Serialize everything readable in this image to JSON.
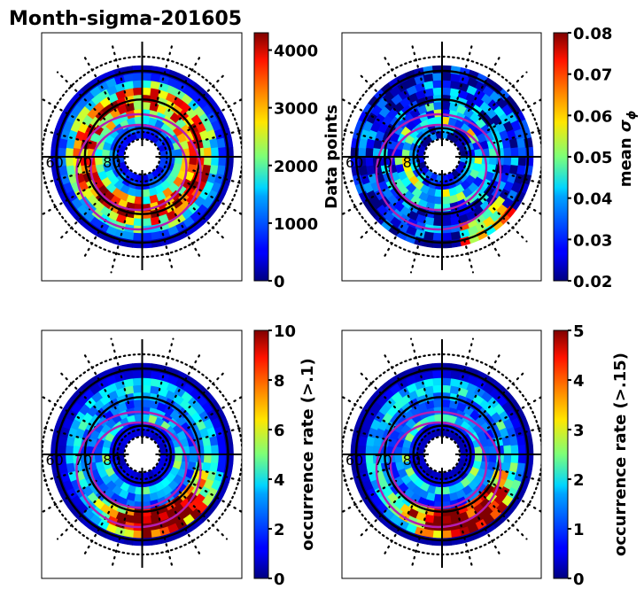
{
  "chart_data": {
    "type": "heatmap",
    "title": "Month-sigma-201605",
    "projection": "polar (magnetic latitude / MLT)",
    "latitude_circles": [
      60,
      70,
      80
    ],
    "latitude_labels": [
      "60",
      "70",
      "80"
    ],
    "panels": [
      {
        "id": "data-points",
        "colormap": "jet",
        "colorbar_label": "Data points",
        "clim": [
          0,
          4300
        ],
        "ticks": [
          0,
          1000,
          2000,
          3000,
          4000
        ],
        "tick_labels": [
          "0",
          "1000",
          "2000",
          "3000",
          "4000"
        ],
        "pattern": "high counts (~3000-4300) in a ring near 65-70 deg, low (<1000) inside 80 deg",
        "ring_values": [
          600,
          900,
          1500,
          2600,
          3200,
          3800,
          2900,
          1800,
          900,
          300
        ]
      },
      {
        "id": "mean-sigma-phi",
        "colormap": "jet",
        "colorbar_label": "mean σ_φ",
        "clim": [
          0.02,
          0.08
        ],
        "ticks": [
          0.02,
          0.03,
          0.04,
          0.05,
          0.06,
          0.07,
          0.08
        ],
        "tick_labels": [
          "0.02",
          "0.03",
          "0.04",
          "0.05",
          "0.06",
          "0.07",
          "0.08"
        ],
        "pattern": "mostly 0.025-0.04; enhanced ~0.05-0.06 near 75-80 deg on dayside and post-midnight edge",
        "ring_values": [
          0.028,
          0.034,
          0.045,
          0.04,
          0.035,
          0.032,
          0.03,
          0.03,
          0.028,
          0.026
        ]
      },
      {
        "id": "occurrence-rate-0.1",
        "colormap": "jet",
        "colorbar_label": "occurrence rate (>.1)",
        "clim": [
          0,
          10
        ],
        "ticks": [
          0,
          2,
          4,
          6,
          8,
          10
        ],
        "tick_labels": [
          "0",
          "2",
          "4",
          "6",
          "8",
          "10"
        ],
        "pattern": "mostly 0-2; peaks 6-10 in the auroral oval pre-midnight/post-midnight sector and near cusp",
        "ring_values": [
          0.8,
          1.2,
          4.0,
          2.5,
          2.0,
          2.5,
          3.5,
          3.0,
          1.0,
          0.5
        ]
      },
      {
        "id": "occurrence-rate-0.15",
        "colormap": "jet",
        "colorbar_label": "occurrence rate (>.15)",
        "clim": [
          0,
          5
        ],
        "ticks": [
          0,
          1,
          2,
          3,
          4,
          5
        ],
        "tick_labels": [
          "0",
          "1",
          "2",
          "3",
          "4",
          "5"
        ],
        "pattern": "mostly 0-1; peaks 3-5 in nightside auroral oval and near cusp",
        "ring_values": [
          0.3,
          0.6,
          2.0,
          1.2,
          1.0,
          1.3,
          1.8,
          1.5,
          0.5,
          0.2
        ]
      }
    ]
  }
}
